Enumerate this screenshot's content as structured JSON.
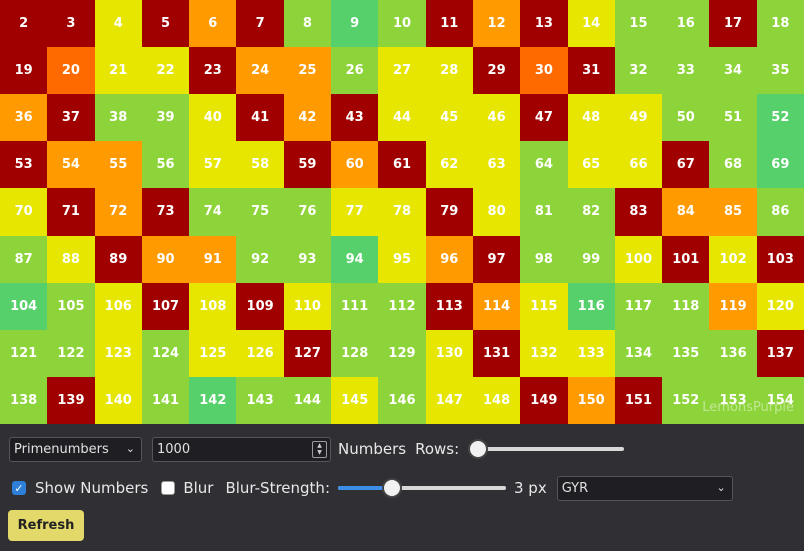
{
  "grid": {
    "columns": 17,
    "cells": [
      {
        "n": "2",
        "c": "#a00000"
      },
      {
        "n": "3",
        "c": "#a00000"
      },
      {
        "n": "4",
        "c": "#e6e600"
      },
      {
        "n": "5",
        "c": "#a00000"
      },
      {
        "n": "6",
        "c": "#ff9a00"
      },
      {
        "n": "7",
        "c": "#a00000"
      },
      {
        "n": "8",
        "c": "#8dd43a"
      },
      {
        "n": "9",
        "c": "#55d06b"
      },
      {
        "n": "10",
        "c": "#8dd43a"
      },
      {
        "n": "11",
        "c": "#a00000"
      },
      {
        "n": "12",
        "c": "#ff9a00"
      },
      {
        "n": "13",
        "c": "#a00000"
      },
      {
        "n": "14",
        "c": "#e6e600"
      },
      {
        "n": "15",
        "c": "#8dd43a"
      },
      {
        "n": "16",
        "c": "#8dd43a"
      },
      {
        "n": "17",
        "c": "#a00000"
      },
      {
        "n": "18",
        "c": "#8dd43a"
      },
      {
        "n": "19",
        "c": "#a00000"
      },
      {
        "n": "20",
        "c": "#ff6a00"
      },
      {
        "n": "21",
        "c": "#e6e600"
      },
      {
        "n": "22",
        "c": "#e6e600"
      },
      {
        "n": "23",
        "c": "#a00000"
      },
      {
        "n": "24",
        "c": "#ff9a00"
      },
      {
        "n": "25",
        "c": "#ff9a00"
      },
      {
        "n": "26",
        "c": "#8dd43a"
      },
      {
        "n": "27",
        "c": "#e6e600"
      },
      {
        "n": "28",
        "c": "#e6e600"
      },
      {
        "n": "29",
        "c": "#a00000"
      },
      {
        "n": "30",
        "c": "#ff6a00"
      },
      {
        "n": "31",
        "c": "#a00000"
      },
      {
        "n": "32",
        "c": "#8dd43a"
      },
      {
        "n": "33",
        "c": "#8dd43a"
      },
      {
        "n": "34",
        "c": "#8dd43a"
      },
      {
        "n": "35",
        "c": "#8dd43a"
      },
      {
        "n": "36",
        "c": "#ff9a00"
      },
      {
        "n": "37",
        "c": "#a00000"
      },
      {
        "n": "38",
        "c": "#8dd43a"
      },
      {
        "n": "39",
        "c": "#8dd43a"
      },
      {
        "n": "40",
        "c": "#e6e600"
      },
      {
        "n": "41",
        "c": "#a00000"
      },
      {
        "n": "42",
        "c": "#ff9a00"
      },
      {
        "n": "43",
        "c": "#a00000"
      },
      {
        "n": "44",
        "c": "#e6e600"
      },
      {
        "n": "45",
        "c": "#e6e600"
      },
      {
        "n": "46",
        "c": "#e6e600"
      },
      {
        "n": "47",
        "c": "#a00000"
      },
      {
        "n": "48",
        "c": "#e6e600"
      },
      {
        "n": "49",
        "c": "#e6e600"
      },
      {
        "n": "50",
        "c": "#8dd43a"
      },
      {
        "n": "51",
        "c": "#8dd43a"
      },
      {
        "n": "52",
        "c": "#55d06b"
      },
      {
        "n": "53",
        "c": "#a00000"
      },
      {
        "n": "54",
        "c": "#ff9a00"
      },
      {
        "n": "55",
        "c": "#ff9a00"
      },
      {
        "n": "56",
        "c": "#8dd43a"
      },
      {
        "n": "57",
        "c": "#e6e600"
      },
      {
        "n": "58",
        "c": "#e6e600"
      },
      {
        "n": "59",
        "c": "#a00000"
      },
      {
        "n": "60",
        "c": "#ff9a00"
      },
      {
        "n": "61",
        "c": "#a00000"
      },
      {
        "n": "62",
        "c": "#e6e600"
      },
      {
        "n": "63",
        "c": "#e6e600"
      },
      {
        "n": "64",
        "c": "#8dd43a"
      },
      {
        "n": "65",
        "c": "#e6e600"
      },
      {
        "n": "66",
        "c": "#e6e600"
      },
      {
        "n": "67",
        "c": "#a00000"
      },
      {
        "n": "68",
        "c": "#8dd43a"
      },
      {
        "n": "69",
        "c": "#55d06b"
      },
      {
        "n": "70",
        "c": "#e6e600"
      },
      {
        "n": "71",
        "c": "#a00000"
      },
      {
        "n": "72",
        "c": "#ff9a00"
      },
      {
        "n": "73",
        "c": "#a00000"
      },
      {
        "n": "74",
        "c": "#8dd43a"
      },
      {
        "n": "75",
        "c": "#8dd43a"
      },
      {
        "n": "76",
        "c": "#8dd43a"
      },
      {
        "n": "77",
        "c": "#e6e600"
      },
      {
        "n": "78",
        "c": "#e6e600"
      },
      {
        "n": "79",
        "c": "#a00000"
      },
      {
        "n": "80",
        "c": "#e6e600"
      },
      {
        "n": "81",
        "c": "#8dd43a"
      },
      {
        "n": "82",
        "c": "#8dd43a"
      },
      {
        "n": "83",
        "c": "#a00000"
      },
      {
        "n": "84",
        "c": "#ff9a00"
      },
      {
        "n": "85",
        "c": "#ff9a00"
      },
      {
        "n": "86",
        "c": "#8dd43a"
      },
      {
        "n": "87",
        "c": "#8dd43a"
      },
      {
        "n": "88",
        "c": "#e6e600"
      },
      {
        "n": "89",
        "c": "#a00000"
      },
      {
        "n": "90",
        "c": "#ff9a00"
      },
      {
        "n": "91",
        "c": "#ff9a00"
      },
      {
        "n": "92",
        "c": "#8dd43a"
      },
      {
        "n": "93",
        "c": "#8dd43a"
      },
      {
        "n": "94",
        "c": "#55d06b"
      },
      {
        "n": "95",
        "c": "#e6e600"
      },
      {
        "n": "96",
        "c": "#ff9a00"
      },
      {
        "n": "97",
        "c": "#a00000"
      },
      {
        "n": "98",
        "c": "#8dd43a"
      },
      {
        "n": "99",
        "c": "#8dd43a"
      },
      {
        "n": "100",
        "c": "#e6e600"
      },
      {
        "n": "101",
        "c": "#a00000"
      },
      {
        "n": "102",
        "c": "#e6e600"
      },
      {
        "n": "103",
        "c": "#a00000"
      },
      {
        "n": "104",
        "c": "#55d06b"
      },
      {
        "n": "105",
        "c": "#8dd43a"
      },
      {
        "n": "106",
        "c": "#e6e600"
      },
      {
        "n": "107",
        "c": "#a00000"
      },
      {
        "n": "108",
        "c": "#e6e600"
      },
      {
        "n": "109",
        "c": "#a00000"
      },
      {
        "n": "110",
        "c": "#e6e600"
      },
      {
        "n": "111",
        "c": "#8dd43a"
      },
      {
        "n": "112",
        "c": "#8dd43a"
      },
      {
        "n": "113",
        "c": "#a00000"
      },
      {
        "n": "114",
        "c": "#ff9a00"
      },
      {
        "n": "115",
        "c": "#e6e600"
      },
      {
        "n": "116",
        "c": "#55d06b"
      },
      {
        "n": "117",
        "c": "#8dd43a"
      },
      {
        "n": "118",
        "c": "#8dd43a"
      },
      {
        "n": "119",
        "c": "#ff9a00"
      },
      {
        "n": "120",
        "c": "#e6e600"
      },
      {
        "n": "121",
        "c": "#8dd43a"
      },
      {
        "n": "122",
        "c": "#8dd43a"
      },
      {
        "n": "123",
        "c": "#e6e600"
      },
      {
        "n": "124",
        "c": "#8dd43a"
      },
      {
        "n": "125",
        "c": "#e6e600"
      },
      {
        "n": "126",
        "c": "#e6e600"
      },
      {
        "n": "127",
        "c": "#a00000"
      },
      {
        "n": "128",
        "c": "#8dd43a"
      },
      {
        "n": "129",
        "c": "#8dd43a"
      },
      {
        "n": "130",
        "c": "#e6e600"
      },
      {
        "n": "131",
        "c": "#a00000"
      },
      {
        "n": "132",
        "c": "#e6e600"
      },
      {
        "n": "133",
        "c": "#e6e600"
      },
      {
        "n": "134",
        "c": "#8dd43a"
      },
      {
        "n": "135",
        "c": "#8dd43a"
      },
      {
        "n": "136",
        "c": "#8dd43a"
      },
      {
        "n": "137",
        "c": "#a00000"
      },
      {
        "n": "138",
        "c": "#8dd43a"
      },
      {
        "n": "139",
        "c": "#a00000"
      },
      {
        "n": "140",
        "c": "#e6e600"
      },
      {
        "n": "141",
        "c": "#8dd43a"
      },
      {
        "n": "142",
        "c": "#55d06b"
      },
      {
        "n": "143",
        "c": "#8dd43a"
      },
      {
        "n": "144",
        "c": "#8dd43a"
      },
      {
        "n": "145",
        "c": "#e6e600"
      },
      {
        "n": "146",
        "c": "#8dd43a"
      },
      {
        "n": "147",
        "c": "#e6e600"
      },
      {
        "n": "148",
        "c": "#e6e600"
      },
      {
        "n": "149",
        "c": "#a00000"
      },
      {
        "n": "150",
        "c": "#ff9a00"
      },
      {
        "n": "151",
        "c": "#a00000"
      },
      {
        "n": "152",
        "c": "#8dd43a"
      },
      {
        "n": "153",
        "c": "#8dd43a"
      },
      {
        "n": "154",
        "c": "#8dd43a"
      }
    ]
  },
  "watermark": "LemonsPurple",
  "controls": {
    "sequence_select": "Primenumbers",
    "count_input": "1000",
    "numbers_label": "Numbers",
    "rows_label": "Rows:",
    "rows_slider_level": 0,
    "show_numbers_label": "Show Numbers",
    "show_numbers_checked": true,
    "blur_label": "Blur",
    "blur_checked": false,
    "blur_strength_label": "Blur-Strength:",
    "blur_strength_value": "3 px",
    "blur_strength_level": 0.32,
    "palette_select": "GYR",
    "refresh_label": "Refresh"
  },
  "colors": {
    "accent": "#2d7fd8",
    "button": "#e2d96a",
    "panel": "#2f2f34"
  }
}
